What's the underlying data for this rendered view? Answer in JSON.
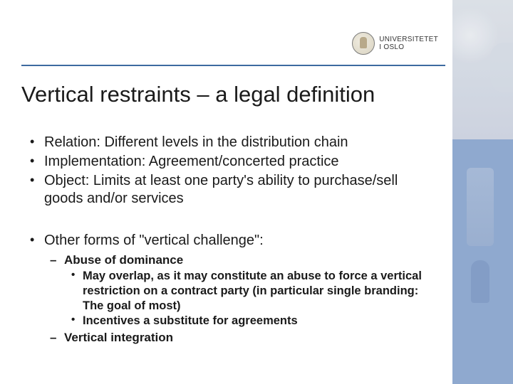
{
  "brand": {
    "line1": "UNIVERSITETET",
    "line2": "I OSLO"
  },
  "colors": {
    "rule": "#3d6aa0",
    "strip_bottom": "#8fa9cf",
    "text": "#1a1a1a"
  },
  "title": "Vertical restraints – a legal definition",
  "bullets": {
    "group1": [
      "Relation: Different levels in the distribution chain",
      "Implementation: Agreement/concerted practice",
      "Object: Limits at least one party's ability to purchase/sell goods and/or services"
    ],
    "group2_intro": "Other forms of \"vertical challenge\":",
    "group2_sub": [
      {
        "text": "Abuse of dominance",
        "sub": [
          "May overlap, as it may constitute an abuse to force a vertical restriction on a contract party (in particular single branding: The goal of most)",
          "Incentives a substitute for agreements"
        ]
      },
      {
        "text": "Vertical integration",
        "sub": []
      }
    ]
  }
}
